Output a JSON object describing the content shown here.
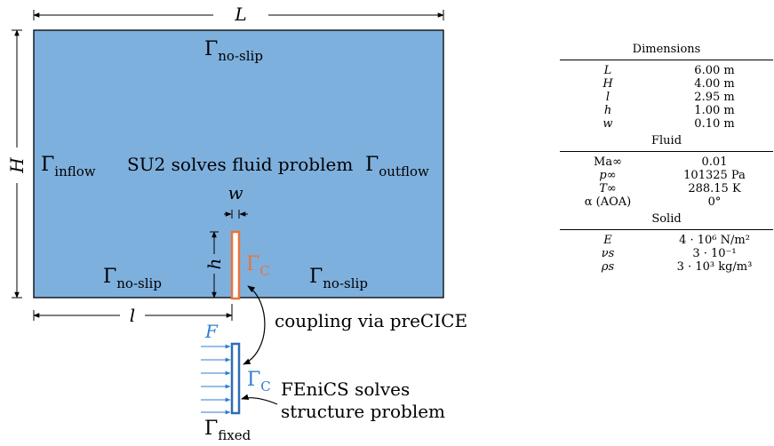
{
  "colors": {
    "fluid_domain": "#7EB0DE",
    "flap_fluid": "#E8743B",
    "flap_solid": "#2E6DB4",
    "force_arrows": "#2E7FD0",
    "gamma_c_fluid": "#E8743B",
    "gamma_c_solid": "#2E7FD0"
  },
  "diagram": {
    "dim_L": "L",
    "dim_H": "H",
    "dim_l": "l",
    "dim_h": "h",
    "dim_w": "w",
    "gamma": "Γ",
    "sub_noslip": "no-slip",
    "sub_inflow": "inflow",
    "sub_outflow": "outflow",
    "sub_fixed": "fixed",
    "sub_c": "C",
    "fluid_solver_text": "SU2 solves fluid problem",
    "coupling_text": "coupling via preCICE",
    "solid_solver_line1": "FEniCS solves",
    "solid_solver_line2": "structure problem",
    "force_label": "F"
  },
  "table": {
    "sections": [
      {
        "title": "Dimensions",
        "rows": [
          {
            "symbol": "L",
            "value": "6.00 m"
          },
          {
            "symbol": "H",
            "value": "4.00 m"
          },
          {
            "symbol": "l",
            "value": "2.95 m"
          },
          {
            "symbol": "h",
            "value": "1.00 m"
          },
          {
            "symbol": "w",
            "value": "0.10 m"
          }
        ]
      },
      {
        "title": "Fluid",
        "rows": [
          {
            "symbol": "Ma∞",
            "value": "0.01"
          },
          {
            "symbol": "p∞",
            "value": "101325 Pa"
          },
          {
            "symbol": "T∞",
            "value": "288.15 K"
          },
          {
            "symbol": "α (AOA)",
            "value": "0°"
          }
        ]
      },
      {
        "title": "Solid",
        "rows": [
          {
            "symbol": "E",
            "value": "4 · 10⁶ N/m²"
          },
          {
            "symbol": "νs",
            "value": "3 · 10⁻¹"
          },
          {
            "symbol": "ρs",
            "value": "3 · 10³ kg/m³"
          }
        ]
      }
    ]
  }
}
